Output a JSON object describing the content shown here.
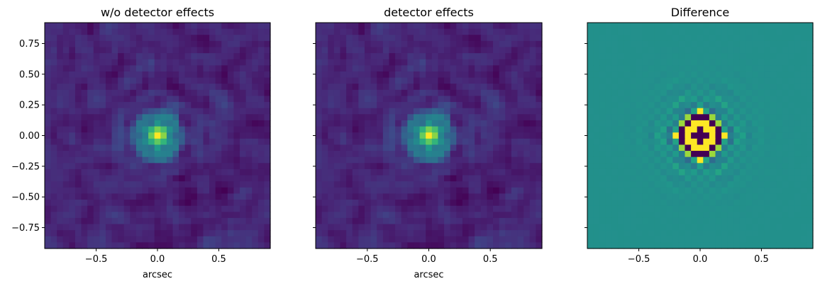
{
  "chart_data": [
    {
      "type": "heatmap",
      "title": "w/o detector effects",
      "xlabel": "arcsec",
      "ylabel": "",
      "xlim": [
        -0.92,
        0.92
      ],
      "ylim": [
        -0.92,
        0.92
      ],
      "xticks": [
        -0.5,
        0.0,
        0.5
      ],
      "xtick_labels": [
        "−0.5",
        "0.0",
        "0.5"
      ],
      "yticks": [
        0.75,
        0.5,
        0.25,
        0.0,
        -0.25,
        -0.5,
        -0.75
      ],
      "ytick_labels": [
        "0.75",
        "0.50",
        "0.25",
        "0.00",
        "−0.25",
        "−0.50",
        "−0.75"
      ],
      "grid": false,
      "colormap": "viridis",
      "pixels": 37,
      "pattern": "psf",
      "seed": 7
    },
    {
      "type": "heatmap",
      "title": "detector effects",
      "xlabel": "arcsec",
      "ylabel": "",
      "xlim": [
        -0.92,
        0.92
      ],
      "ylim": [
        -0.92,
        0.92
      ],
      "xticks": [
        -0.5,
        0.0,
        0.5
      ],
      "xtick_labels": [
        "−0.5",
        "0.0",
        "0.5"
      ],
      "yticks": [
        0.75,
        0.5,
        0.25,
        0.0,
        -0.25,
        -0.5,
        -0.75
      ],
      "ytick_labels": [
        "",
        "",
        "",
        "",
        "",
        "",
        ""
      ],
      "grid": false,
      "colormap": "viridis",
      "pixels": 37,
      "pattern": "psf",
      "seed": 7
    },
    {
      "type": "heatmap",
      "title": "Difference",
      "xlabel": "",
      "ylabel": "",
      "xlim": [
        -0.92,
        0.92
      ],
      "ylim": [
        -0.92,
        0.92
      ],
      "xticks": [
        -0.5,
        0.0,
        0.5
      ],
      "xtick_labels": [
        "−0.5",
        "0.0",
        "0.5"
      ],
      "yticks": [
        0.75,
        0.5,
        0.25,
        0.0,
        -0.25,
        -0.5,
        -0.75
      ],
      "ytick_labels": [
        "",
        "",
        "",
        "",
        "",
        "",
        ""
      ],
      "grid": false,
      "colormap": "viridis",
      "pixels": 37,
      "pattern": "difference",
      "seed": 7
    }
  ]
}
